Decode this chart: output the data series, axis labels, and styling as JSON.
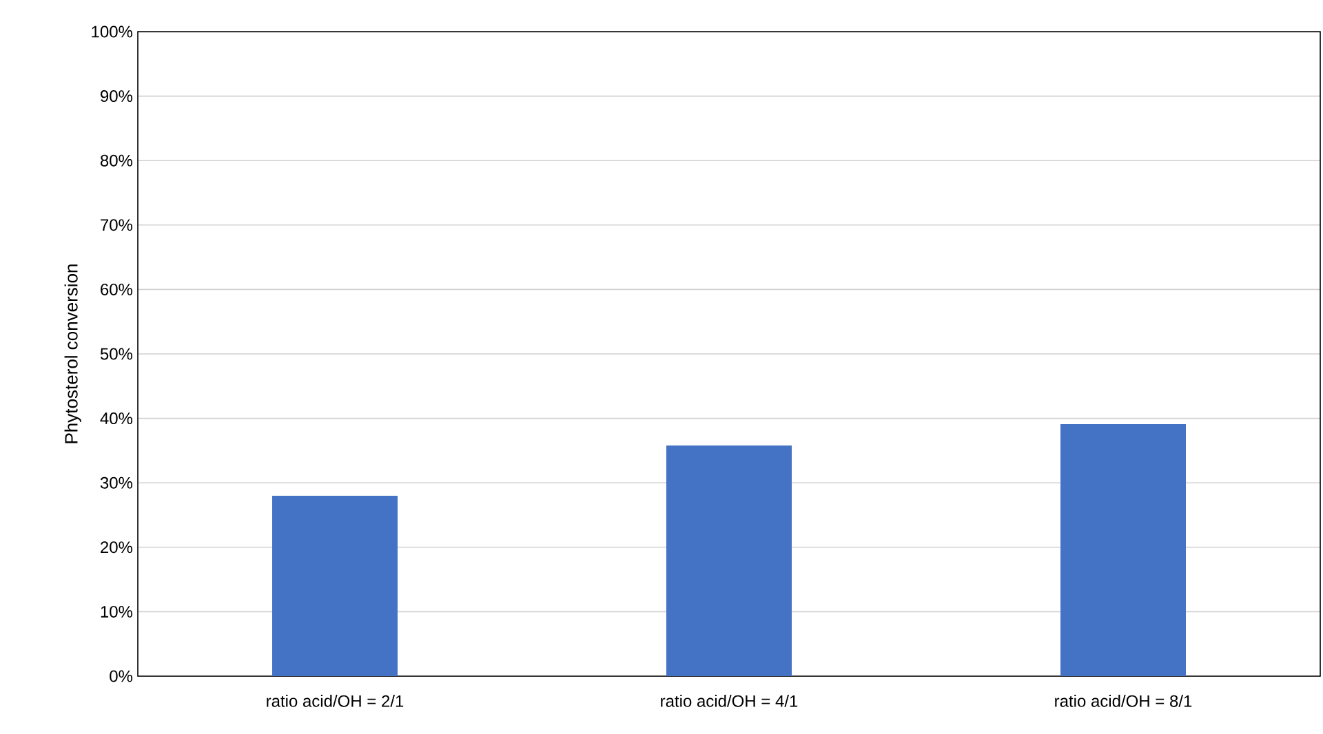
{
  "chart_data": {
    "type": "bar",
    "ylabel": "Phytosterol conversion",
    "categories": [
      "ratio acid/OH = 2/1",
      "ratio acid/OH = 4/1",
      "ratio acid/OH = 8/1"
    ],
    "values": [
      0.28,
      0.358,
      0.391
    ],
    "color": "#4472c4",
    "ylim": [
      0,
      1
    ],
    "yticks": [
      {
        "value": 0,
        "label": "0%"
      },
      {
        "value": 0.1,
        "label": "10%"
      },
      {
        "value": 0.2,
        "label": "20%"
      },
      {
        "value": 0.3,
        "label": "30%"
      },
      {
        "value": 0.4,
        "label": "40%"
      },
      {
        "value": 0.5,
        "label": "50%"
      },
      {
        "value": 0.6,
        "label": "60%"
      },
      {
        "value": 0.7,
        "label": "70%"
      },
      {
        "value": 0.8,
        "label": "80%"
      },
      {
        "value": 0.9,
        "label": "90%"
      },
      {
        "value": 1,
        "label": "100%"
      }
    ],
    "grid": "y"
  }
}
